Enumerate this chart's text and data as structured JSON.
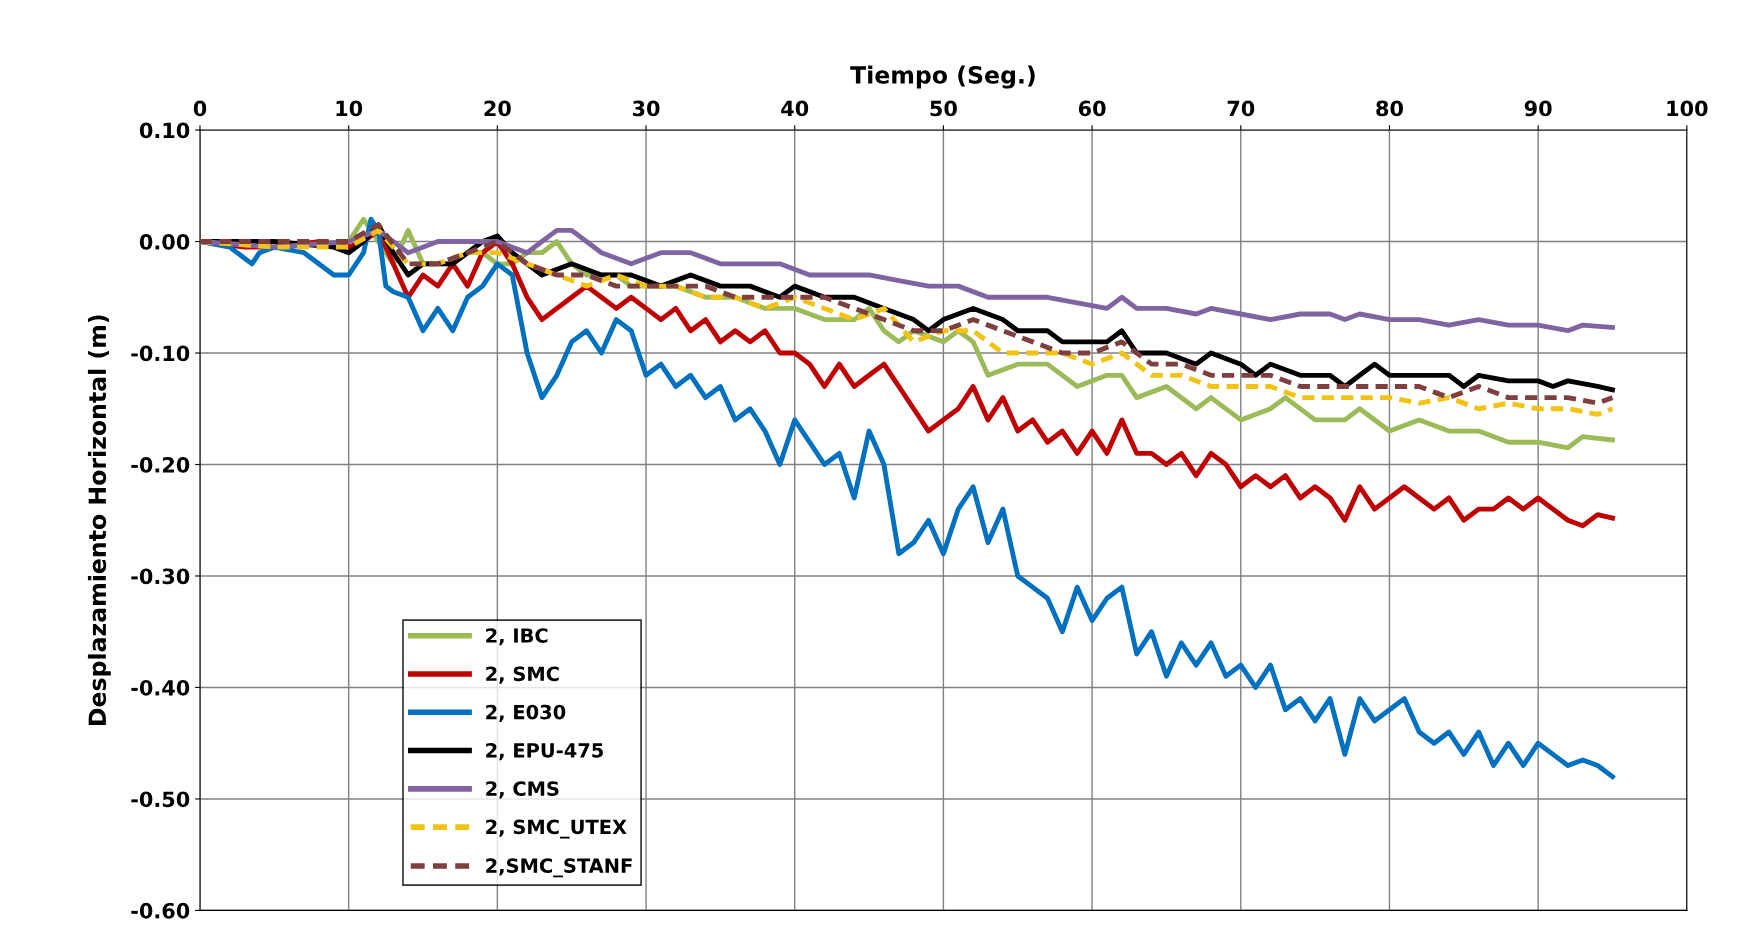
{
  "chart_data": {
    "type": "line",
    "xlabel": "Tiempo (Seg.)",
    "ylabel": "Desplazamiento Horizontal (m)",
    "xlim": [
      0,
      100
    ],
    "xticks": [
      0,
      10,
      20,
      30,
      40,
      50,
      60,
      70,
      80,
      90,
      100
    ],
    "ylim": [
      -0.6,
      0.1
    ],
    "yticks": [
      {
        "value": 0.1,
        "label": "0.10"
      },
      {
        "value": 0,
        "label": "0.00"
      },
      {
        "value": -0.1,
        "label": "-0.10"
      },
      {
        "value": -0.2,
        "label": "-0.20"
      },
      {
        "value": -0.3,
        "label": "-0.30"
      },
      {
        "value": -0.4,
        "label": "-0.40"
      },
      {
        "value": -0.5,
        "label": "-0.50"
      },
      {
        "value": -0.6,
        "label": "-0.60"
      }
    ],
    "grid": true,
    "legend": "bottom left",
    "marker": "none",
    "series": [
      {
        "name": "2, IBC",
        "color": "#9bbb59",
        "line_style": "solid",
        "x": [
          0,
          5,
          10,
          11,
          12,
          13,
          14,
          15,
          16,
          17,
          18,
          19,
          20,
          21,
          22,
          23,
          24,
          25,
          26,
          27,
          28,
          29,
          30,
          32,
          34,
          36,
          38,
          40,
          42,
          44,
          45,
          46,
          47,
          48,
          50,
          51,
          52,
          53,
          55,
          57,
          59,
          61,
          62,
          63,
          65,
          67,
          68,
          70,
          72,
          73,
          75,
          77,
          78,
          80,
          82,
          84,
          86,
          88,
          90,
          92,
          93,
          95
        ],
        "values": [
          0,
          -0.005,
          0,
          0.02,
          0,
          -0.02,
          0.01,
          -0.02,
          -0.02,
          -0.02,
          -0.01,
          -0.01,
          -0.02,
          -0.02,
          -0.01,
          -0.01,
          0,
          -0.02,
          -0.03,
          -0.03,
          -0.03,
          -0.04,
          -0.04,
          -0.04,
          -0.05,
          -0.05,
          -0.06,
          -0.06,
          -0.07,
          -0.07,
          -0.06,
          -0.08,
          -0.09,
          -0.08,
          -0.09,
          -0.08,
          -0.09,
          -0.12,
          -0.11,
          -0.11,
          -0.13,
          -0.12,
          -0.12,
          -0.14,
          -0.13,
          -0.15,
          -0.14,
          -0.16,
          -0.15,
          -0.14,
          -0.16,
          -0.16,
          -0.15,
          -0.17,
          -0.16,
          -0.17,
          -0.17,
          -0.18,
          -0.18,
          -0.185,
          -0.175,
          -0.178
        ]
      },
      {
        "name": "2, SMC",
        "color": "#c00000",
        "line_style": "solid",
        "x": [
          0,
          3,
          5,
          8,
          10,
          11,
          12,
          13,
          14,
          15,
          16,
          17,
          18,
          19,
          20,
          21,
          22,
          23,
          24,
          25,
          26,
          27,
          28,
          29,
          30,
          31,
          32,
          33,
          34,
          35,
          36,
          37,
          38,
          39,
          40,
          41,
          42,
          43,
          44,
          45,
          46,
          47,
          48,
          49,
          50,
          51,
          52,
          53,
          54,
          55,
          56,
          57,
          58,
          59,
          60,
          61,
          62,
          63,
          64,
          65,
          66,
          67,
          68,
          69,
          70,
          71,
          72,
          73,
          74,
          75,
          76,
          77,
          78,
          79,
          80,
          81,
          82,
          83,
          84,
          85,
          86,
          87,
          88,
          89,
          90,
          91,
          92,
          93,
          94,
          95
        ],
        "values": [
          0,
          -0.005,
          -0.005,
          0,
          -0.005,
          0,
          0.01,
          -0.02,
          -0.05,
          -0.03,
          -0.04,
          -0.02,
          -0.04,
          -0.01,
          0,
          -0.02,
          -0.05,
          -0.07,
          -0.06,
          -0.05,
          -0.04,
          -0.05,
          -0.06,
          -0.05,
          -0.06,
          -0.07,
          -0.06,
          -0.08,
          -0.07,
          -0.09,
          -0.08,
          -0.09,
          -0.08,
          -0.1,
          -0.1,
          -0.11,
          -0.13,
          -0.11,
          -0.13,
          -0.12,
          -0.11,
          -0.13,
          -0.15,
          -0.17,
          -0.16,
          -0.15,
          -0.13,
          -0.16,
          -0.14,
          -0.17,
          -0.16,
          -0.18,
          -0.17,
          -0.19,
          -0.17,
          -0.19,
          -0.16,
          -0.19,
          -0.19,
          -0.2,
          -0.19,
          -0.21,
          -0.19,
          -0.2,
          -0.22,
          -0.21,
          -0.22,
          -0.21,
          -0.23,
          -0.22,
          -0.23,
          -0.25,
          -0.22,
          -0.24,
          -0.23,
          -0.22,
          -0.23,
          -0.24,
          -0.23,
          -0.25,
          -0.24,
          -0.24,
          -0.23,
          -0.24,
          -0.23,
          -0.24,
          -0.25,
          -0.255,
          -0.245,
          -0.248
        ]
      },
      {
        "name": "2, E030",
        "color": "#0070c0",
        "line_style": "solid",
        "x": [
          0,
          2,
          3.5,
          4,
          5,
          7,
          9,
          10,
          11,
          11.5,
          12,
          12.5,
          13,
          14,
          15,
          15.5,
          16,
          17,
          18,
          19,
          20,
          21,
          22,
          23,
          24,
          25,
          26,
          27,
          28,
          29,
          30,
          31,
          32,
          33,
          34,
          35,
          36,
          37,
          38,
          39,
          40,
          41,
          42,
          43,
          44,
          45,
          46,
          47,
          48,
          49,
          50,
          51,
          52,
          53,
          54,
          55,
          56,
          57,
          58,
          59,
          60,
          61,
          62,
          63,
          64,
          65,
          66,
          67,
          68,
          69,
          70,
          71,
          72,
          73,
          74,
          75,
          76,
          77,
          78,
          79,
          80,
          81,
          82,
          83,
          84,
          85,
          86,
          87,
          88,
          89,
          90,
          91,
          92,
          93,
          94,
          95
        ],
        "values": [
          0,
          -0.005,
          -0.02,
          -0.01,
          -0.005,
          -0.01,
          -0.03,
          -0.03,
          -0.01,
          0.02,
          0.01,
          -0.04,
          -0.045,
          -0.05,
          -0.08,
          -0.07,
          -0.06,
          -0.08,
          -0.05,
          -0.04,
          -0.02,
          -0.03,
          -0.1,
          -0.14,
          -0.12,
          -0.09,
          -0.08,
          -0.1,
          -0.07,
          -0.08,
          -0.12,
          -0.11,
          -0.13,
          -0.12,
          -0.14,
          -0.13,
          -0.16,
          -0.15,
          -0.17,
          -0.2,
          -0.16,
          -0.18,
          -0.2,
          -0.19,
          -0.23,
          -0.17,
          -0.2,
          -0.28,
          -0.27,
          -0.25,
          -0.28,
          -0.24,
          -0.22,
          -0.27,
          -0.24,
          -0.3,
          -0.31,
          -0.32,
          -0.35,
          -0.31,
          -0.34,
          -0.32,
          -0.31,
          -0.37,
          -0.35,
          -0.39,
          -0.36,
          -0.38,
          -0.36,
          -0.39,
          -0.38,
          -0.4,
          -0.38,
          -0.42,
          -0.41,
          -0.43,
          -0.41,
          -0.46,
          -0.41,
          -0.43,
          -0.42,
          -0.41,
          -0.44,
          -0.45,
          -0.44,
          -0.46,
          -0.44,
          -0.47,
          -0.45,
          -0.47,
          -0.45,
          -0.46,
          -0.47,
          -0.465,
          -0.47,
          -0.48
        ]
      },
      {
        "name": "2, EPU-475",
        "color": "#000000",
        "line_style": "solid",
        "x": [
          0,
          5,
          9,
          10,
          11,
          12,
          13,
          14,
          15,
          17,
          19,
          20,
          21,
          22,
          23,
          25,
          27,
          29,
          31,
          33,
          35,
          37,
          39,
          40,
          42,
          44,
          46,
          48,
          49,
          50,
          52,
          54,
          55,
          57,
          58,
          60,
          61,
          62,
          63,
          65,
          67,
          68,
          70,
          71,
          72,
          74,
          76,
          77,
          78,
          79,
          80,
          82,
          84,
          85,
          86,
          88,
          90,
          91,
          92,
          94,
          95
        ],
        "values": [
          0,
          0,
          -0.005,
          -0.01,
          0,
          0.015,
          -0.01,
          -0.03,
          -0.02,
          -0.02,
          0,
          0.005,
          -0.01,
          -0.02,
          -0.03,
          -0.02,
          -0.03,
          -0.03,
          -0.04,
          -0.03,
          -0.04,
          -0.04,
          -0.05,
          -0.04,
          -0.05,
          -0.05,
          -0.06,
          -0.07,
          -0.08,
          -0.07,
          -0.06,
          -0.07,
          -0.08,
          -0.08,
          -0.09,
          -0.09,
          -0.09,
          -0.08,
          -0.1,
          -0.1,
          -0.11,
          -0.1,
          -0.11,
          -0.12,
          -0.11,
          -0.12,
          -0.12,
          -0.13,
          -0.12,
          -0.11,
          -0.12,
          -0.12,
          -0.12,
          -0.13,
          -0.12,
          -0.125,
          -0.125,
          -0.13,
          -0.125,
          -0.13,
          -0.133
        ]
      },
      {
        "name": "2, CMS",
        "color": "#8064a2",
        "line_style": "solid",
        "x": [
          0,
          5,
          10,
          12,
          14,
          16,
          18,
          20,
          22,
          23,
          24,
          25,
          26,
          27,
          29,
          31,
          33,
          35,
          37,
          39,
          41,
          43,
          45,
          47,
          49,
          51,
          53,
          55,
          57,
          59,
          61,
          62,
          63,
          65,
          67,
          68,
          70,
          72,
          74,
          76,
          77,
          78,
          80,
          82,
          84,
          86,
          88,
          90,
          92,
          93,
          95
        ],
        "values": [
          0,
          -0.005,
          0,
          0.01,
          -0.01,
          0,
          0,
          0,
          -0.01,
          0,
          0.01,
          0.01,
          0,
          -0.01,
          -0.02,
          -0.01,
          -0.01,
          -0.02,
          -0.02,
          -0.02,
          -0.03,
          -0.03,
          -0.03,
          -0.035,
          -0.04,
          -0.04,
          -0.05,
          -0.05,
          -0.05,
          -0.055,
          -0.06,
          -0.05,
          -0.06,
          -0.06,
          -0.065,
          -0.06,
          -0.065,
          -0.07,
          -0.065,
          -0.065,
          -0.07,
          -0.065,
          -0.07,
          -0.07,
          -0.075,
          -0.07,
          -0.075,
          -0.075,
          -0.08,
          -0.075,
          -0.077
        ]
      },
      {
        "name": "2, SMC_UTEX",
        "color": "#f2c314",
        "line_style": "dashed",
        "x": [
          0,
          5,
          10,
          12,
          14,
          16,
          18,
          20,
          22,
          24,
          26,
          28,
          30,
          32,
          34,
          36,
          38,
          40,
          42,
          44,
          46,
          48,
          50,
          52,
          54,
          56,
          58,
          60,
          62,
          64,
          66,
          68,
          70,
          72,
          74,
          76,
          78,
          80,
          82,
          84,
          86,
          88,
          90,
          92,
          94,
          95
        ],
        "values": [
          0,
          -0.005,
          -0.005,
          0.01,
          -0.02,
          -0.02,
          -0.01,
          -0.01,
          -0.02,
          -0.03,
          -0.04,
          -0.03,
          -0.04,
          -0.04,
          -0.05,
          -0.05,
          -0.06,
          -0.05,
          -0.06,
          -0.07,
          -0.06,
          -0.09,
          -0.08,
          -0.08,
          -0.1,
          -0.1,
          -0.1,
          -0.11,
          -0.1,
          -0.12,
          -0.12,
          -0.13,
          -0.13,
          -0.13,
          -0.14,
          -0.14,
          -0.14,
          -0.14,
          -0.145,
          -0.14,
          -0.15,
          -0.145,
          -0.15,
          -0.15,
          -0.155,
          -0.15
        ]
      },
      {
        "name": "2,SMC_STANF",
        "color": "#7f3f3f",
        "line_style": "dashed",
        "x": [
          0,
          5,
          10,
          12,
          14,
          16,
          18,
          20,
          22,
          24,
          26,
          28,
          30,
          32,
          34,
          36,
          38,
          40,
          42,
          44,
          46,
          48,
          50,
          52,
          54,
          56,
          58,
          60,
          62,
          64,
          66,
          68,
          70,
          72,
          74,
          76,
          78,
          80,
          82,
          84,
          86,
          88,
          90,
          92,
          94,
          95
        ],
        "values": [
          0,
          0,
          0,
          0.015,
          -0.02,
          -0.02,
          -0.01,
          0,
          -0.02,
          -0.03,
          -0.03,
          -0.04,
          -0.04,
          -0.04,
          -0.04,
          -0.05,
          -0.05,
          -0.05,
          -0.05,
          -0.06,
          -0.07,
          -0.08,
          -0.08,
          -0.07,
          -0.08,
          -0.09,
          -0.1,
          -0.1,
          -0.09,
          -0.11,
          -0.11,
          -0.12,
          -0.12,
          -0.12,
          -0.13,
          -0.13,
          -0.13,
          -0.13,
          -0.13,
          -0.14,
          -0.13,
          -0.14,
          -0.14,
          -0.14,
          -0.145,
          -0.14
        ]
      }
    ]
  }
}
